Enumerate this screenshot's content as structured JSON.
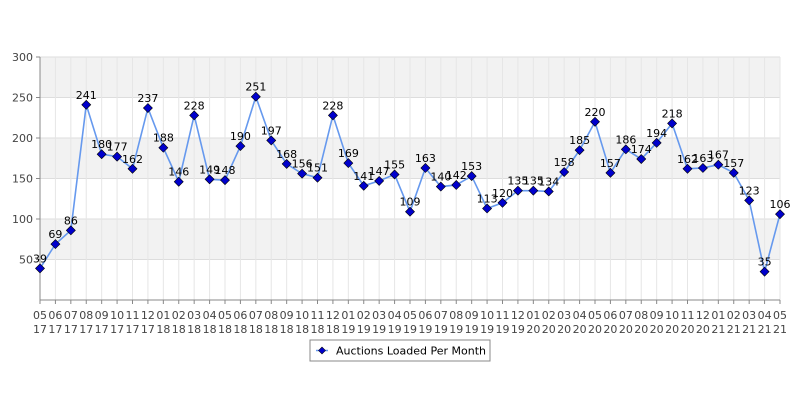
{
  "chart_data": {
    "type": "line",
    "title": "",
    "xlabel": "",
    "ylabel": "",
    "ylim": [
      0,
      300
    ],
    "yticks": [
      50,
      100,
      150,
      200,
      250,
      300
    ],
    "grid": true,
    "legend_position": "bottom-center",
    "categories": [
      "05 17",
      "06 17",
      "07 17",
      "08 17",
      "09 17",
      "10 17",
      "11 17",
      "12 17",
      "01 18",
      "02 18",
      "03 18",
      "04 18",
      "05 18",
      "06 18",
      "07 18",
      "08 18",
      "09 18",
      "10 18",
      "11 18",
      "12 18",
      "01 19",
      "02 19",
      "03 19",
      "04 19",
      "05 19",
      "06 19",
      "07 19",
      "08 19",
      "09 19",
      "10 19",
      "11 19",
      "12 19",
      "01 20",
      "02 20",
      "03 20",
      "04 20",
      "05 20",
      "06 20",
      "07 20",
      "08 20",
      "09 20",
      "10 20",
      "11 20",
      "12 20",
      "01 21",
      "02 21",
      "03 21",
      "04 21",
      "05 21"
    ],
    "series": [
      {
        "name": "Auctions Loaded Per Month",
        "color": "#6699ee",
        "marker_color": "#0000cc",
        "values": [
          39,
          69,
          86,
          241,
          180,
          177,
          162,
          237,
          188,
          146,
          228,
          149,
          148,
          190,
          251,
          197,
          168,
          156,
          151,
          228,
          169,
          141,
          147,
          155,
          109,
          163,
          140,
          142,
          153,
          113,
          120,
          135,
          135,
          134,
          158,
          185,
          220,
          157,
          186,
          174,
          194,
          218,
          162,
          163,
          167,
          157,
          123,
          35,
          106
        ]
      }
    ]
  }
}
